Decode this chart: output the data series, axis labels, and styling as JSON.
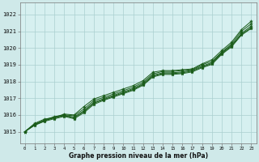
{
  "bg_color": "#cfe9e9",
  "plot_bg_color": "#d6f0f0",
  "line_color": "#1a5c1a",
  "grid_color": "#aacfcf",
  "x_label": "Graphe pression niveau de la mer (hPa)",
  "ylim": [
    1014.3,
    1022.7
  ],
  "xlim": [
    -0.5,
    23.5
  ],
  "yticks": [
    1015,
    1016,
    1017,
    1018,
    1019,
    1020,
    1021,
    1022
  ],
  "x_ticks": [
    0,
    1,
    2,
    3,
    4,
    5,
    6,
    7,
    8,
    9,
    10,
    11,
    12,
    13,
    14,
    15,
    16,
    17,
    18,
    19,
    20,
    21,
    22,
    23
  ],
  "series": [
    [
      1015.0,
      1015.5,
      1015.75,
      1015.85,
      1016.05,
      1016.0,
      1016.5,
      1016.95,
      1017.15,
      1017.35,
      1017.55,
      1017.75,
      1018.05,
      1018.55,
      1018.65,
      1018.65,
      1018.7,
      1018.75,
      1019.05,
      1019.3,
      1019.85,
      1020.35,
      1021.1,
      1021.6
    ],
    [
      1015.0,
      1015.45,
      1015.7,
      1015.9,
      1016.0,
      1015.95,
      1016.35,
      1016.85,
      1017.05,
      1017.25,
      1017.45,
      1017.65,
      1017.95,
      1018.45,
      1018.6,
      1018.6,
      1018.65,
      1018.7,
      1019.0,
      1019.2,
      1019.75,
      1020.25,
      1021.0,
      1021.45
    ],
    [
      1015.0,
      1015.4,
      1015.65,
      1015.85,
      1015.97,
      1015.87,
      1016.25,
      1016.75,
      1016.97,
      1017.17,
      1017.37,
      1017.57,
      1017.87,
      1018.37,
      1018.52,
      1018.52,
      1018.57,
      1018.67,
      1018.92,
      1019.12,
      1019.72,
      1020.17,
      1020.87,
      1021.32
    ],
    [
      1015.0,
      1015.42,
      1015.67,
      1015.82,
      1015.96,
      1015.82,
      1016.2,
      1016.7,
      1016.92,
      1017.12,
      1017.32,
      1017.52,
      1017.82,
      1018.32,
      1018.47,
      1018.47,
      1018.52,
      1018.62,
      1018.87,
      1019.07,
      1019.67,
      1020.12,
      1020.82,
      1021.22
    ],
    [
      1015.0,
      1015.38,
      1015.62,
      1015.77,
      1015.91,
      1015.77,
      1016.13,
      1016.63,
      1016.87,
      1017.07,
      1017.27,
      1017.47,
      1017.77,
      1018.27,
      1018.42,
      1018.42,
      1018.47,
      1018.57,
      1018.82,
      1019.02,
      1019.62,
      1020.07,
      1020.77,
      1021.17
    ]
  ]
}
